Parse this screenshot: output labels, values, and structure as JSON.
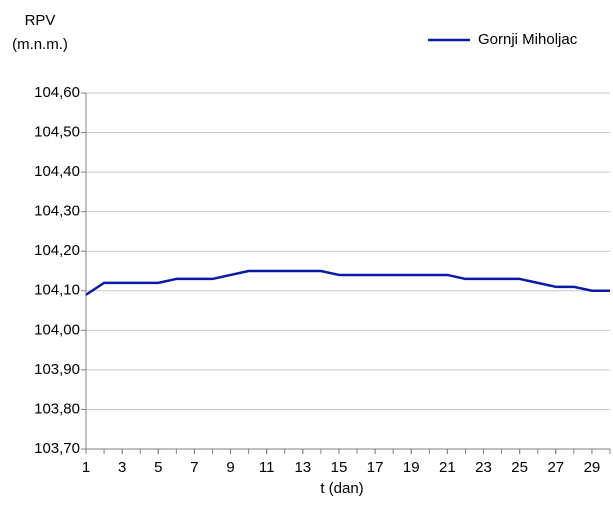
{
  "chart_data": {
    "type": "line",
    "y_label": [
      "RPV",
      "(m.n.m.)"
    ],
    "x_label": "t (dan)",
    "x": [
      1,
      2,
      3,
      4,
      5,
      6,
      7,
      8,
      9,
      10,
      11,
      12,
      13,
      14,
      15,
      16,
      17,
      18,
      19,
      20,
      21,
      22,
      23,
      24,
      25,
      26,
      27,
      28,
      29,
      30
    ],
    "series": [
      {
        "name": "Gornji Miholjac",
        "color": "#0a1aa8",
        "values": [
          104.09,
          104.12,
          104.12,
          104.12,
          104.12,
          104.13,
          104.13,
          104.13,
          104.14,
          104.15,
          104.15,
          104.15,
          104.15,
          104.15,
          104.14,
          104.14,
          104.14,
          104.14,
          104.14,
          104.14,
          104.14,
          104.13,
          104.13,
          104.13,
          104.13,
          104.12,
          104.11,
          104.11,
          104.1,
          104.1
        ]
      }
    ],
    "xlim": [
      1,
      30
    ],
    "xticks": [
      1,
      3,
      5,
      7,
      9,
      11,
      13,
      15,
      17,
      19,
      21,
      23,
      25,
      27,
      29
    ],
    "ylim": [
      103.7,
      104.6
    ],
    "yticks": [
      {
        "value": 103.7,
        "label": "103,70"
      },
      {
        "value": 103.8,
        "label": "103,80"
      },
      {
        "value": 103.9,
        "label": "103,90"
      },
      {
        "value": 104.0,
        "label": "104,00"
      },
      {
        "value": 104.1,
        "label": "104,10"
      },
      {
        "value": 104.2,
        "label": "104,20"
      },
      {
        "value": 104.3,
        "label": "104,30"
      },
      {
        "value": 104.4,
        "label": "104,40"
      },
      {
        "value": 104.5,
        "label": "104,50"
      },
      {
        "value": 104.6,
        "label": "104,60"
      }
    ],
    "grid": true,
    "legend": "top-right"
  }
}
